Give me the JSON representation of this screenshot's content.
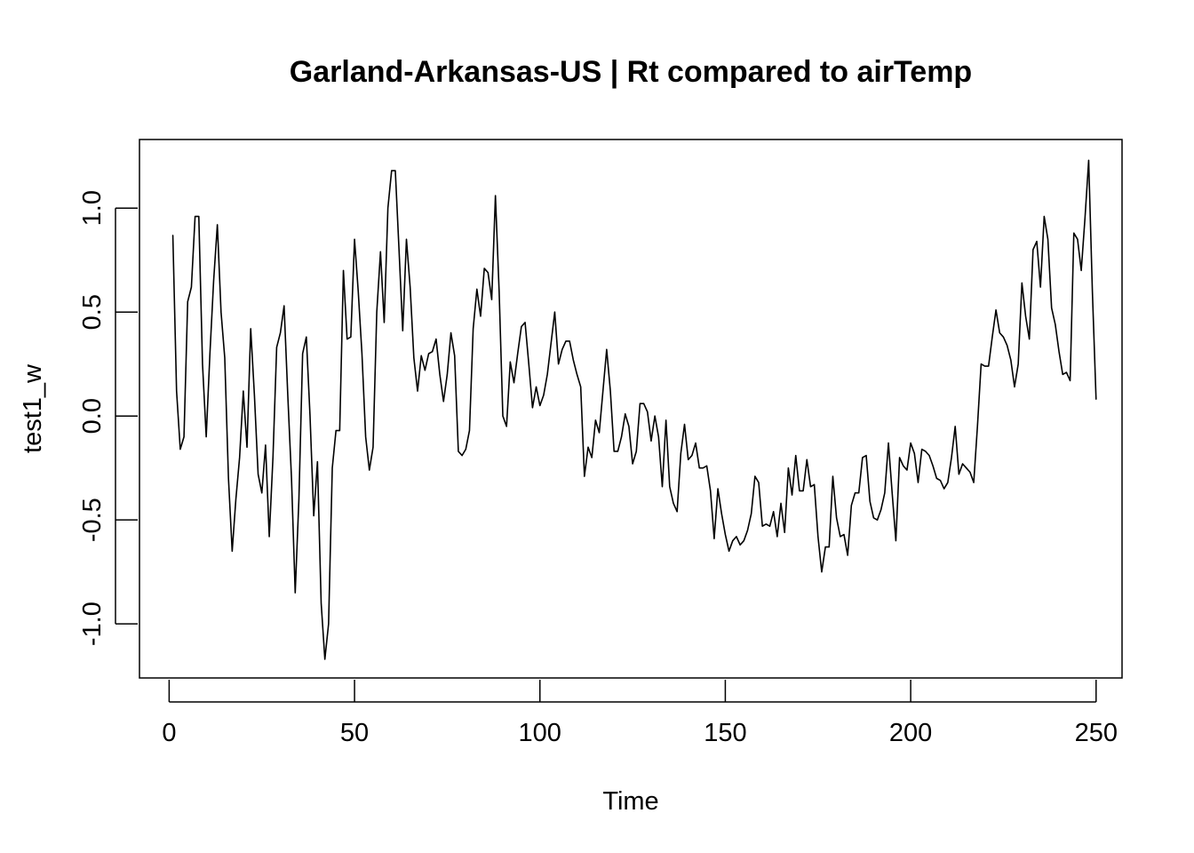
{
  "chart_data": {
    "type": "line",
    "title": "Garland-Arkansas-US | Rt compared to airTemp",
    "xlabel": "Time",
    "ylabel": "test1_w",
    "xlim": [
      -8,
      257
    ],
    "ylim": [
      -1.26,
      1.33
    ],
    "x_ticks": [
      0,
      50,
      100,
      150,
      200,
      250
    ],
    "x_tick_labels": [
      "0",
      "50",
      "100",
      "150",
      "200",
      "250"
    ],
    "y_ticks": [
      -1.0,
      -0.5,
      0.0,
      0.5,
      1.0
    ],
    "y_tick_labels": [
      "-1.0",
      "-0.5",
      "0.0",
      "0.5",
      "1.0"
    ],
    "grid": false,
    "series": [
      {
        "x_start": 1,
        "x_step": 1,
        "values": [
          0.87,
          0.12,
          -0.16,
          -0.1,
          0.55,
          0.62,
          0.96,
          0.96,
          0.25,
          -0.1,
          0.3,
          0.65,
          0.92,
          0.5,
          0.28,
          -0.3,
          -0.65,
          -0.4,
          -0.2,
          0.12,
          -0.15,
          0.42,
          0.1,
          -0.28,
          -0.37,
          -0.14,
          -0.58,
          -0.2,
          0.33,
          0.4,
          0.53,
          0.1,
          -0.3,
          -0.85,
          -0.4,
          0.3,
          0.38,
          0.0,
          -0.48,
          -0.22,
          -0.9,
          -1.17,
          -1.0,
          -0.25,
          -0.07,
          -0.07,
          0.7,
          0.37,
          0.38,
          0.85,
          0.6,
          0.3,
          -0.1,
          -0.26,
          -0.15,
          0.5,
          0.79,
          0.45,
          1.0,
          1.18,
          1.18,
          0.8,
          0.41,
          0.85,
          0.62,
          0.28,
          0.12,
          0.29,
          0.22,
          0.3,
          0.31,
          0.37,
          0.2,
          0.07,
          0.2,
          0.4,
          0.29,
          -0.17,
          -0.19,
          -0.16,
          -0.07,
          0.42,
          0.61,
          0.48,
          0.71,
          0.69,
          0.56,
          1.06,
          0.6,
          0.0,
          -0.05,
          0.26,
          0.16,
          0.3,
          0.43,
          0.45,
          0.25,
          0.04,
          0.14,
          0.05,
          0.1,
          0.2,
          0.35,
          0.5,
          0.25,
          0.32,
          0.36,
          0.36,
          0.27,
          0.2,
          0.14,
          -0.29,
          -0.15,
          -0.2,
          -0.02,
          -0.08,
          0.12,
          0.32,
          0.12,
          -0.17,
          -0.17,
          -0.1,
          0.01,
          -0.05,
          -0.23,
          -0.17,
          0.06,
          0.06,
          0.02,
          -0.12,
          0.0,
          -0.1,
          -0.34,
          -0.02,
          -0.34,
          -0.42,
          -0.46,
          -0.18,
          -0.04,
          -0.21,
          -0.19,
          -0.13,
          -0.25,
          -0.25,
          -0.24,
          -0.36,
          -0.59,
          -0.35,
          -0.47,
          -0.57,
          -0.65,
          -0.6,
          -0.58,
          -0.62,
          -0.6,
          -0.55,
          -0.47,
          -0.29,
          -0.32,
          -0.53,
          -0.52,
          -0.53,
          -0.46,
          -0.58,
          -0.42,
          -0.56,
          -0.25,
          -0.38,
          -0.19,
          -0.36,
          -0.36,
          -0.21,
          -0.34,
          -0.33,
          -0.58,
          -0.75,
          -0.63,
          -0.63,
          -0.29,
          -0.49,
          -0.58,
          -0.57,
          -0.67,
          -0.43,
          -0.37,
          -0.37,
          -0.2,
          -0.19,
          -0.41,
          -0.49,
          -0.5,
          -0.45,
          -0.37,
          -0.13,
          -0.37,
          -0.6,
          -0.2,
          -0.24,
          -0.26,
          -0.13,
          -0.18,
          -0.32,
          -0.16,
          -0.17,
          -0.19,
          -0.24,
          -0.3,
          -0.31,
          -0.35,
          -0.32,
          -0.2,
          -0.05,
          -0.28,
          -0.23,
          -0.25,
          -0.27,
          -0.32,
          -0.05,
          0.25,
          0.24,
          0.24,
          0.38,
          0.51,
          0.4,
          0.38,
          0.34,
          0.27,
          0.14,
          0.25,
          0.64,
          0.48,
          0.37,
          0.8,
          0.84,
          0.62,
          0.96,
          0.85,
          0.52,
          0.44,
          0.31,
          0.2,
          0.21,
          0.17,
          0.88,
          0.85,
          0.7,
          0.95,
          1.23,
          0.6,
          0.08
        ]
      }
    ]
  }
}
